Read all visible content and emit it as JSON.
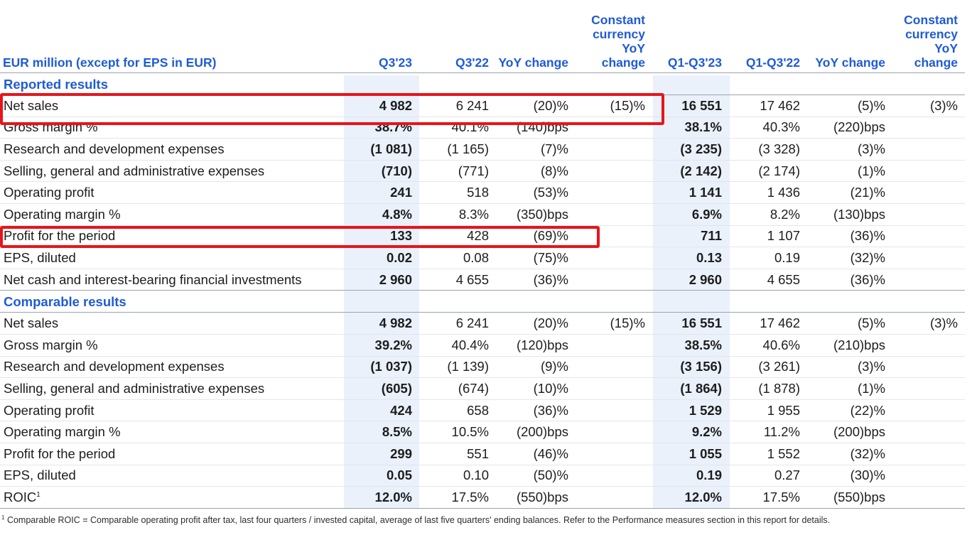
{
  "header": {
    "label": "EUR million (except for EPS in EUR)",
    "q3_23": "Q3'23",
    "q3_22": "Q3'22",
    "yoy": "YoY change",
    "cc_yoy": "Constant currency YoY change",
    "ytd_23": "Q1-Q3'23",
    "ytd_22": "Q1-Q3'22",
    "yoy_ytd": "YoY change",
    "cc_yoy_ytd": "Constant currency YoY change"
  },
  "reported": {
    "title": "Reported results",
    "rows": [
      {
        "label": "Net sales",
        "q3_23": "4 982",
        "q3_22": "6 241",
        "yoy": "(20)%",
        "cc": "(15)%",
        "ytd_23": "16 551",
        "ytd_22": "17 462",
        "yoy_ytd": "(5)%",
        "cc_ytd": "(3)%"
      },
      {
        "label": "Gross margin %",
        "q3_23": "38.7%",
        "q3_22": "40.1%",
        "yoy": "(140)bps",
        "cc": "",
        "ytd_23": "38.1%",
        "ytd_22": "40.3%",
        "yoy_ytd": "(220)bps",
        "cc_ytd": ""
      },
      {
        "label": "Research and development expenses",
        "q3_23": "(1 081)",
        "q3_22": "(1 165)",
        "yoy": "(7)%",
        "cc": "",
        "ytd_23": "(3 235)",
        "ytd_22": "(3 328)",
        "yoy_ytd": "(3)%",
        "cc_ytd": ""
      },
      {
        "label": "Selling, general and administrative expenses",
        "q3_23": "(710)",
        "q3_22": "(771)",
        "yoy": "(8)%",
        "cc": "",
        "ytd_23": "(2 142)",
        "ytd_22": "(2 174)",
        "yoy_ytd": "(1)%",
        "cc_ytd": ""
      },
      {
        "label": "Operating profit",
        "q3_23": "241",
        "q3_22": "518",
        "yoy": "(53)%",
        "cc": "",
        "ytd_23": "1 141",
        "ytd_22": "1 436",
        "yoy_ytd": "(21)%",
        "cc_ytd": ""
      },
      {
        "label": "Operating margin %",
        "q3_23": "4.8%",
        "q3_22": "8.3%",
        "yoy": "(350)bps",
        "cc": "",
        "ytd_23": "6.9%",
        "ytd_22": "8.2%",
        "yoy_ytd": "(130)bps",
        "cc_ytd": ""
      },
      {
        "label": "Profit for the period",
        "q3_23": "133",
        "q3_22": "428",
        "yoy": "(69)%",
        "cc": "",
        "ytd_23": "711",
        "ytd_22": "1 107",
        "yoy_ytd": "(36)%",
        "cc_ytd": ""
      },
      {
        "label": "EPS, diluted",
        "q3_23": "0.02",
        "q3_22": "0.08",
        "yoy": "(75)%",
        "cc": "",
        "ytd_23": "0.13",
        "ytd_22": "0.19",
        "yoy_ytd": "(32)%",
        "cc_ytd": ""
      },
      {
        "label": "Net cash and interest-bearing financial investments",
        "q3_23": "2 960",
        "q3_22": "4 655",
        "yoy": "(36)%",
        "cc": "",
        "ytd_23": "2 960",
        "ytd_22": "4 655",
        "yoy_ytd": "(36)%",
        "cc_ytd": ""
      }
    ]
  },
  "comparable": {
    "title": "Comparable results",
    "rows": [
      {
        "label": "Net sales",
        "q3_23": "4 982",
        "q3_22": "6 241",
        "yoy": "(20)%",
        "cc": "(15)%",
        "ytd_23": "16 551",
        "ytd_22": "17 462",
        "yoy_ytd": "(5)%",
        "cc_ytd": "(3)%"
      },
      {
        "label": "Gross margin %",
        "q3_23": "39.2%",
        "q3_22": "40.4%",
        "yoy": "(120)bps",
        "cc": "",
        "ytd_23": "38.5%",
        "ytd_22": "40.6%",
        "yoy_ytd": "(210)bps",
        "cc_ytd": ""
      },
      {
        "label": "Research and development expenses",
        "q3_23": "(1 037)",
        "q3_22": "(1 139)",
        "yoy": "(9)%",
        "cc": "",
        "ytd_23": "(3 156)",
        "ytd_22": "(3 261)",
        "yoy_ytd": "(3)%",
        "cc_ytd": ""
      },
      {
        "label": "Selling, general and administrative expenses",
        "q3_23": "(605)",
        "q3_22": "(674)",
        "yoy": "(10)%",
        "cc": "",
        "ytd_23": "(1 864)",
        "ytd_22": "(1 878)",
        "yoy_ytd": "(1)%",
        "cc_ytd": ""
      },
      {
        "label": "Operating profit",
        "q3_23": "424",
        "q3_22": "658",
        "yoy": "(36)%",
        "cc": "",
        "ytd_23": "1 529",
        "ytd_22": "1 955",
        "yoy_ytd": "(22)%",
        "cc_ytd": ""
      },
      {
        "label": "Operating margin %",
        "q3_23": "8.5%",
        "q3_22": "10.5%",
        "yoy": "(200)bps",
        "cc": "",
        "ytd_23": "9.2%",
        "ytd_22": "11.2%",
        "yoy_ytd": "(200)bps",
        "cc_ytd": ""
      },
      {
        "label": "Profit for the period",
        "q3_23": "299",
        "q3_22": "551",
        "yoy": "(46)%",
        "cc": "",
        "ytd_23": "1 055",
        "ytd_22": "1 552",
        "yoy_ytd": "(32)%",
        "cc_ytd": ""
      },
      {
        "label": "EPS, diluted",
        "q3_23": "0.05",
        "q3_22": "0.10",
        "yoy": "(50)%",
        "cc": "",
        "ytd_23": "0.19",
        "ytd_22": "0.27",
        "yoy_ytd": "(30)%",
        "cc_ytd": ""
      },
      {
        "label": "ROIC",
        "label_sup": "1",
        "q3_23": "12.0%",
        "q3_22": "17.5%",
        "yoy": "(550)bps",
        "cc": "",
        "ytd_23": "12.0%",
        "ytd_22": "17.5%",
        "yoy_ytd": "(550)bps",
        "cc_ytd": ""
      }
    ]
  },
  "footnote": {
    "marker": "1",
    "text": "Comparable ROIC = Comparable operating profit after tax, last four quarters / invested capital, average of last five quarters' ending balances. Refer to the Performance measures section in this report for details."
  },
  "colors": {
    "header_blue": "#1f5bd8",
    "highlight_red": "#e8141b",
    "column_shade": "#eaf1fb"
  }
}
